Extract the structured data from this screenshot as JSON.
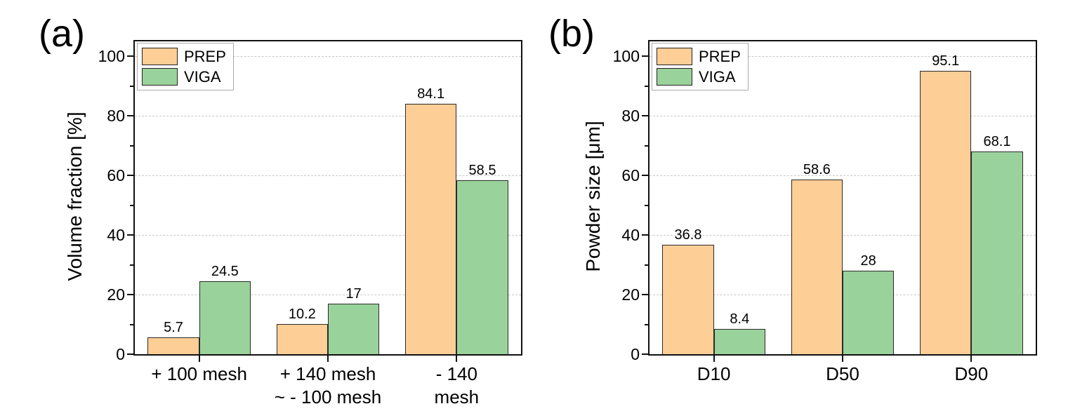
{
  "figure": {
    "background": "#ffffff",
    "panels": [
      {
        "letter": "(a)",
        "ylabel": "Volume fraction [%]"
      },
      {
        "letter": "(b)",
        "ylabel": "Powder size [μm]"
      }
    ]
  },
  "colors": {
    "prep": "#FDCE96",
    "viga": "#9AD29B",
    "bar_border": "#2a2a2a",
    "axis": "#111111",
    "gridline": "#c9c9c9",
    "legend_border": "#ababab",
    "text": "#000000"
  },
  "chart_data": [
    {
      "type": "bar",
      "panel_label": "(a)",
      "title": "",
      "xlabel": "",
      "ylabel": "Volume fraction [%]",
      "categories": [
        "+ 100 mesh",
        "+ 140 mesh\n~ - 100 mesh",
        "- 140 mesh"
      ],
      "series": [
        {
          "name": "PREP",
          "color": "#FDCE96",
          "values": [
            5.7,
            10.2,
            84.1
          ]
        },
        {
          "name": "VIGA",
          "color": "#9AD29B",
          "values": [
            24.5,
            17,
            58.5
          ]
        }
      ],
      "bar_labels": [
        "5.7",
        "24.5",
        "10.2",
        "17",
        "84.1",
        "58.5"
      ],
      "ylim": [
        0,
        105
      ],
      "yticks": [
        0,
        20,
        40,
        60,
        80,
        100
      ],
      "yticks_minor": [
        10,
        30,
        50,
        70,
        90
      ],
      "grid": "horizontal dashed at major ticks",
      "legend_position": "top-left inside",
      "legend_entries": [
        "PREP",
        "VIGA"
      ]
    },
    {
      "type": "bar",
      "panel_label": "(b)",
      "title": "",
      "xlabel": "",
      "ylabel": "Powder size [μm]",
      "categories": [
        "D10",
        "D50",
        "D90"
      ],
      "series": [
        {
          "name": "PREP",
          "color": "#FDCE96",
          "values": [
            36.8,
            58.6,
            95.1
          ]
        },
        {
          "name": "VIGA",
          "color": "#9AD29B",
          "values": [
            8.4,
            28,
            68.1
          ]
        }
      ],
      "bar_labels": [
        "36.8",
        "8.4",
        "58.6",
        "28",
        "95.1",
        "68.1"
      ],
      "ylim": [
        0,
        105
      ],
      "yticks": [
        0,
        20,
        40,
        60,
        80,
        100
      ],
      "yticks_minor": [
        10,
        30,
        50,
        70,
        90
      ],
      "grid": "horizontal dashed at major ticks",
      "legend_position": "top-left inside",
      "legend_entries": [
        "PREP",
        "VIGA"
      ]
    }
  ]
}
